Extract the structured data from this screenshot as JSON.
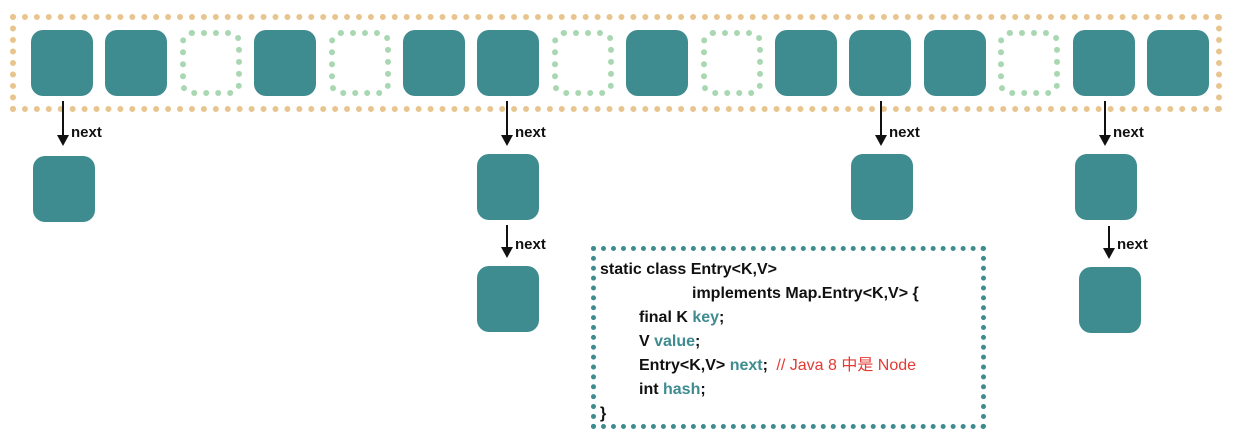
{
  "array": {
    "slots": [
      "filled",
      "filled",
      "empty",
      "filled",
      "empty",
      "filled",
      "filled",
      "empty",
      "filled",
      "empty",
      "filled",
      "filled",
      "filled",
      "empty",
      "filled",
      "filled"
    ]
  },
  "links": {
    "next_label": "next"
  },
  "code": {
    "line1": "static class Entry<K,V>",
    "line2": "implements Map.Entry<K,V> {",
    "line3_prefix": "final K ",
    "line3_field": "key",
    "line3_suffix": ";",
    "line4_prefix": "V ",
    "line4_field": "value",
    "line4_suffix": ";",
    "line5_prefix": "Entry<K,V> ",
    "line5_field": "next",
    "line5_suffix": ";",
    "line5_comment": "// Java 8 中是 Node",
    "line6_prefix": "int ",
    "line6_field": "hash",
    "line6_suffix": ";",
    "line7": "}"
  },
  "colors": {
    "node_fill": "#3e8c90",
    "empty_slot_border": "#a8d7b2",
    "array_border": "#e8c58f",
    "code_border": "#3e8c90",
    "field_highlight": "#3e8c90",
    "comment": "#e53a34"
  }
}
